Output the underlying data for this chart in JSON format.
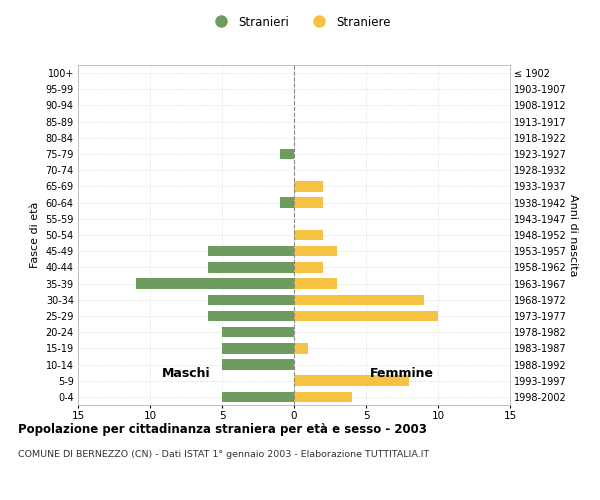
{
  "age_groups": [
    "0-4",
    "5-9",
    "10-14",
    "15-19",
    "20-24",
    "25-29",
    "30-34",
    "35-39",
    "40-44",
    "45-49",
    "50-54",
    "55-59",
    "60-64",
    "65-69",
    "70-74",
    "75-79",
    "80-84",
    "85-89",
    "90-94",
    "95-99",
    "100+"
  ],
  "birth_years": [
    "1998-2002",
    "1993-1997",
    "1988-1992",
    "1983-1987",
    "1978-1982",
    "1973-1977",
    "1968-1972",
    "1963-1967",
    "1958-1962",
    "1953-1957",
    "1948-1952",
    "1943-1947",
    "1938-1942",
    "1933-1937",
    "1928-1932",
    "1923-1927",
    "1918-1922",
    "1913-1917",
    "1908-1912",
    "1903-1907",
    "≤ 1902"
  ],
  "maschi": [
    5,
    0,
    5,
    5,
    5,
    6,
    6,
    11,
    6,
    6,
    0,
    0,
    1,
    0,
    0,
    1,
    0,
    0,
    0,
    0,
    0
  ],
  "femmine": [
    4,
    8,
    0,
    1,
    0,
    10,
    9,
    3,
    2,
    3,
    2,
    0,
    2,
    2,
    0,
    0,
    0,
    0,
    0,
    0,
    0
  ],
  "color_maschi": "#6e9c5e",
  "color_femmine": "#f5c242",
  "title": "Popolazione per cittadinanza straniera per età e sesso - 2003",
  "subtitle": "COMUNE DI BERNEZZO (CN) - Dati ISTAT 1° gennaio 2003 - Elaborazione TUTTITALIA.IT",
  "xlabel_left": "Maschi",
  "xlabel_right": "Femmine",
  "ylabel_left": "Fasce di età",
  "ylabel_right": "Anni di nascita",
  "legend_maschi": "Stranieri",
  "legend_femmine": "Straniere",
  "xlim": 15,
  "background_color": "#ffffff",
  "grid_color": "#cccccc"
}
